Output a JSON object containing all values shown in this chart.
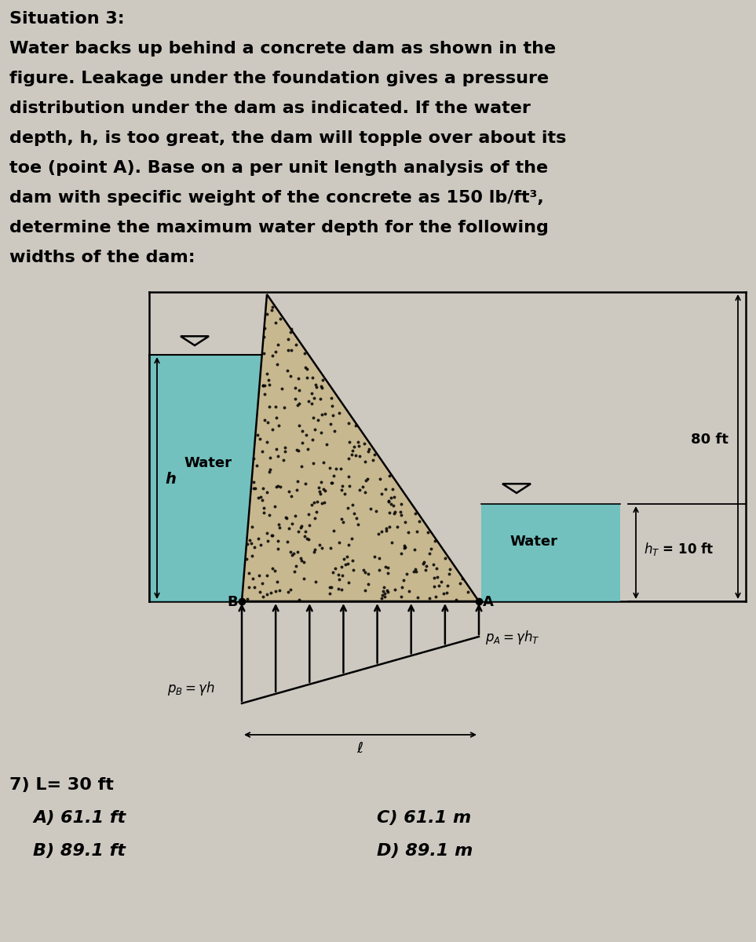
{
  "title_line1": "Situation 3:",
  "body_lines": [
    "Water backs up behind a concrete dam as shown in the",
    "figure. Leakage under the foundation gives a pressure",
    "distribution under the dam as indicated. If the water",
    "depth, h, is too great, the dam will topple over about its",
    "toe (point A). Base on a per unit length analysis of the",
    "dam with specific weight of the concrete as 150 lb/ft³,",
    "determine the maximum water depth for the following",
    "widths of the dam:"
  ],
  "question_num": "7) L= 30 ft",
  "answer_A": "A) 61.1 ft",
  "answer_B": "B) 89.1 ft",
  "answer_C": "C) 61.1 m",
  "answer_D": "D) 89.1 m",
  "bg_color": "#cdc9c1",
  "water_color": "#5bbfbf",
  "concrete_color": "#c8b890",
  "label_80ft": "80 ft",
  "label_hT": "$h_T$ = 10 ft",
  "label_water_left": "Water",
  "label_water_right": "Water",
  "label_h": "h",
  "label_B": "B",
  "label_A": "A",
  "label_pB": "$p_B = \\gamma h$",
  "label_pA": "$p_A = \\gamma h_T$",
  "label_ell": "$\\ell$"
}
